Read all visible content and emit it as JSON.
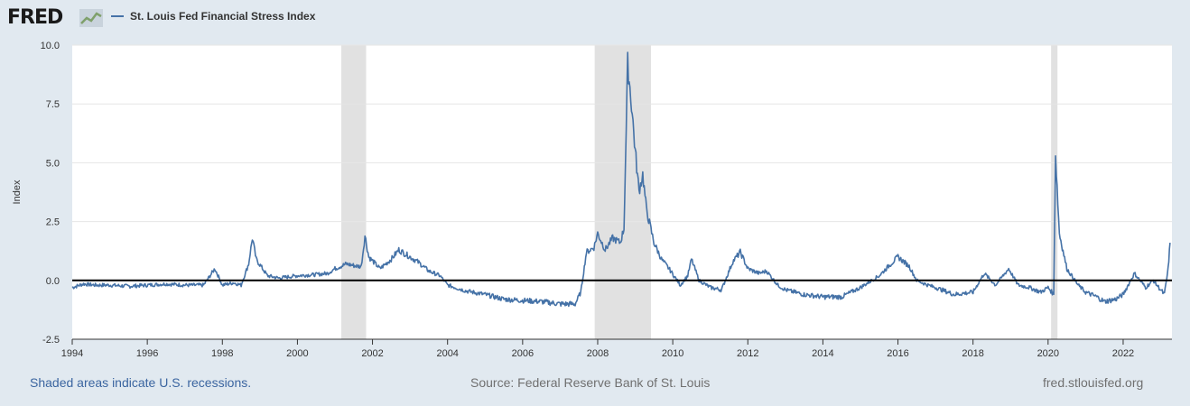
{
  "brand": {
    "name": "FRED",
    "icon": "chart-line-icon"
  },
  "chart_data": {
    "type": "line",
    "title": "",
    "ylabel": "Index",
    "xlabel": "",
    "series": [
      {
        "name": "St. Louis Fed Financial Stress Index",
        "color": "#4572a7",
        "points": [
          [
            1994.0,
            -0.3
          ],
          [
            1994.3,
            -0.15
          ],
          [
            1994.6,
            -0.2
          ],
          [
            1995.0,
            -0.2
          ],
          [
            1995.5,
            -0.25
          ],
          [
            1996.0,
            -0.2
          ],
          [
            1996.5,
            -0.15
          ],
          [
            1997.0,
            -0.2
          ],
          [
            1997.5,
            -0.2
          ],
          [
            1997.8,
            0.5
          ],
          [
            1998.0,
            -0.2
          ],
          [
            1998.3,
            -0.1
          ],
          [
            1998.5,
            -0.2
          ],
          [
            1998.7,
            0.7
          ],
          [
            1998.8,
            1.8
          ],
          [
            1998.9,
            0.9
          ],
          [
            1999.2,
            0.2
          ],
          [
            1999.5,
            0.1
          ],
          [
            2000.0,
            0.2
          ],
          [
            2000.5,
            0.25
          ],
          [
            2000.8,
            0.3
          ],
          [
            2001.0,
            0.5
          ],
          [
            2001.3,
            0.7
          ],
          [
            2001.6,
            0.6
          ],
          [
            2001.7,
            0.6
          ],
          [
            2001.8,
            1.9
          ],
          [
            2001.9,
            1.0
          ],
          [
            2002.2,
            0.5
          ],
          [
            2002.5,
            0.9
          ],
          [
            2002.7,
            1.3
          ],
          [
            2002.9,
            1.1
          ],
          [
            2003.2,
            0.8
          ],
          [
            2003.5,
            0.4
          ],
          [
            2003.8,
            0.2
          ],
          [
            2004.0,
            -0.2
          ],
          [
            2004.5,
            -0.45
          ],
          [
            2005.0,
            -0.6
          ],
          [
            2005.5,
            -0.8
          ],
          [
            2006.0,
            -0.85
          ],
          [
            2006.5,
            -0.9
          ],
          [
            2007.0,
            -1.0
          ],
          [
            2007.4,
            -1.0
          ],
          [
            2007.55,
            -0.5
          ],
          [
            2007.7,
            1.2
          ],
          [
            2007.9,
            1.4
          ],
          [
            2008.0,
            2.0
          ],
          [
            2008.2,
            1.3
          ],
          [
            2008.4,
            1.8
          ],
          [
            2008.6,
            1.6
          ],
          [
            2008.7,
            2.2
          ],
          [
            2008.8,
            9.2
          ],
          [
            2008.9,
            7.5
          ],
          [
            2009.0,
            5.5
          ],
          [
            2009.1,
            3.8
          ],
          [
            2009.2,
            4.5
          ],
          [
            2009.3,
            3.0
          ],
          [
            2009.5,
            1.6
          ],
          [
            2009.7,
            0.9
          ],
          [
            2009.9,
            0.5
          ],
          [
            2010.2,
            -0.2
          ],
          [
            2010.4,
            0.2
          ],
          [
            2010.5,
            0.9
          ],
          [
            2010.7,
            0.0
          ],
          [
            2011.0,
            -0.3
          ],
          [
            2011.3,
            -0.4
          ],
          [
            2011.6,
            0.8
          ],
          [
            2011.8,
            1.2
          ],
          [
            2012.0,
            0.5
          ],
          [
            2012.3,
            0.3
          ],
          [
            2012.5,
            0.4
          ],
          [
            2012.8,
            -0.2
          ],
          [
            2013.0,
            -0.4
          ],
          [
            2013.5,
            -0.6
          ],
          [
            2014.0,
            -0.7
          ],
          [
            2014.5,
            -0.7
          ],
          [
            2015.0,
            -0.3
          ],
          [
            2015.5,
            0.2
          ],
          [
            2016.0,
            1.0
          ],
          [
            2016.3,
            0.6
          ],
          [
            2016.5,
            0.0
          ],
          [
            2016.8,
            -0.2
          ],
          [
            2017.0,
            -0.3
          ],
          [
            2017.5,
            -0.6
          ],
          [
            2018.0,
            -0.5
          ],
          [
            2018.3,
            0.3
          ],
          [
            2018.6,
            -0.2
          ],
          [
            2018.95,
            0.5
          ],
          [
            2019.2,
            -0.2
          ],
          [
            2019.5,
            -0.3
          ],
          [
            2019.8,
            -0.5
          ],
          [
            2020.0,
            -0.3
          ],
          [
            2020.15,
            -0.6
          ],
          [
            2020.2,
            5.3
          ],
          [
            2020.3,
            2.0
          ],
          [
            2020.5,
            0.5
          ],
          [
            2020.8,
            -0.2
          ],
          [
            2021.0,
            -0.5
          ],
          [
            2021.3,
            -0.7
          ],
          [
            2021.5,
            -0.9
          ],
          [
            2021.8,
            -0.8
          ],
          [
            2022.0,
            -0.6
          ],
          [
            2022.3,
            0.3
          ],
          [
            2022.6,
            -0.3
          ],
          [
            2022.8,
            0.0
          ],
          [
            2023.0,
            -0.4
          ],
          [
            2023.1,
            -0.6
          ],
          [
            2023.2,
            0.5
          ],
          [
            2023.25,
            1.6
          ]
        ]
      }
    ],
    "xlim": [
      1994,
      2023.3
    ],
    "ylim": [
      -2.5,
      10.0
    ],
    "x_ticks": [
      "1994",
      "1996",
      "1998",
      "2000",
      "2002",
      "2004",
      "2006",
      "2008",
      "2010",
      "2012",
      "2014",
      "2016",
      "2018",
      "2020",
      "2022"
    ],
    "y_ticks": [
      "10.0",
      "7.5",
      "5.0",
      "2.5",
      "0.0",
      "-2.5"
    ],
    "recessions": [
      [
        2001.17,
        2001.83
      ],
      [
        2007.92,
        2009.42
      ],
      [
        2020.08,
        2020.25
      ]
    ],
    "zero_line": true
  },
  "footer": {
    "note": "Shaded areas indicate U.S. recessions.",
    "source": "Source: Federal Reserve Bank of St. Louis",
    "site": "fred.stlouisfed.org"
  }
}
